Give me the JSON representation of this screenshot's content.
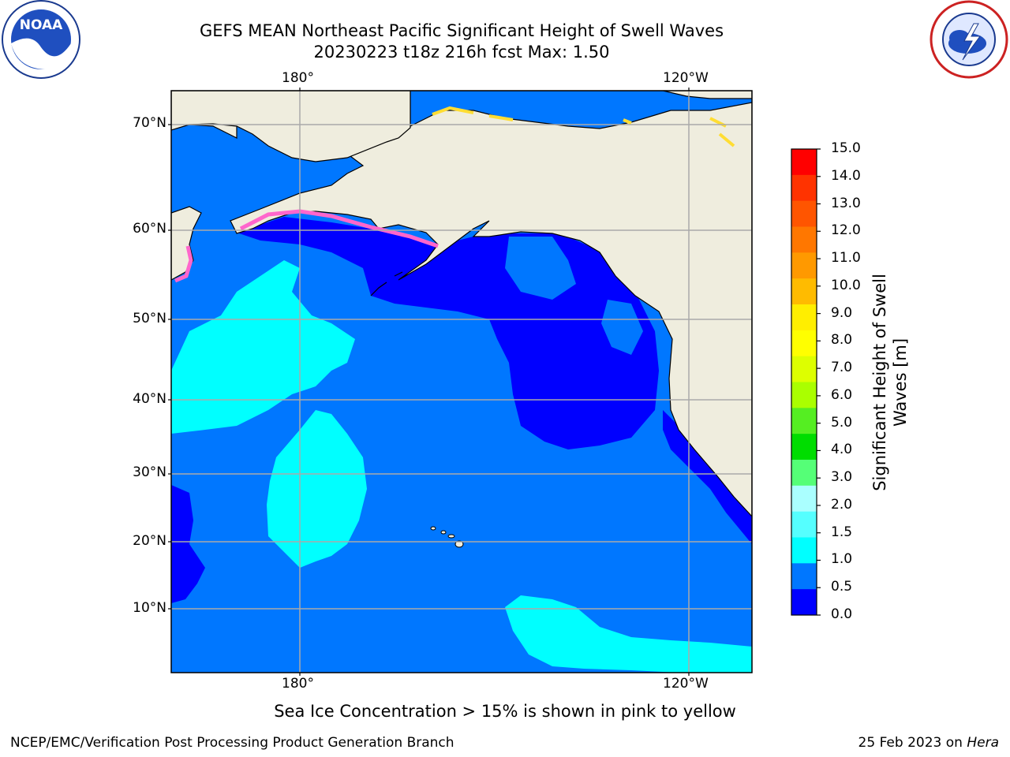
{
  "header": {
    "title_line1": "GEFS MEAN Northeast Pacific Significant Height of Swell Waves",
    "title_line2": "20230223 t18z 216h fcst   Max: 1.50"
  },
  "axes": {
    "lon_top": [
      "180°",
      "120°W"
    ],
    "lon_bottom": [
      "180°",
      "120°W"
    ],
    "lat_labels": [
      "70°N",
      "60°N",
      "50°N",
      "40°N",
      "30°N",
      "20°N",
      "10°N"
    ]
  },
  "colorbar": {
    "title": "Significant Height of Swell Waves [m]",
    "title_line1": "Significant Height of Swell",
    "title_line2": "Waves [m]",
    "ticks": [
      "15.0",
      "14.0",
      "13.0",
      "12.0",
      "11.0",
      "10.0",
      "9.0",
      "8.0",
      "7.0",
      "6.0",
      "5.0",
      "4.0",
      "3.0",
      "2.0",
      "1.5",
      "1.0",
      "0.5",
      "0.0"
    ],
    "colors": [
      "#ff0000",
      "#ff3300",
      "#ff5500",
      "#ff7700",
      "#ff9900",
      "#ffbb00",
      "#ffee00",
      "#ffff00",
      "#ddff00",
      "#aaff00",
      "#55ee22",
      "#00dd00",
      "#55ff77",
      "#aaffff",
      "#55ffff",
      "#00ffff",
      "#0077ff",
      "#0000ff"
    ]
  },
  "colors": {
    "land": "#efedde",
    "ocean_mid": "#0077ff",
    "ocean_low": "#0000ff",
    "ocean_high": "#00ffff",
    "ice_pink": "#ff66cc",
    "ice_yellow": "#ffdd33"
  },
  "footer": {
    "sea_ice_note": "Sea Ice Concentration > 15% is shown in pink to yellow",
    "credit_left": "NCEP/EMC/Verification Post Processing Product Generation Branch",
    "credit_right_date": "25 Feb 2023 on ",
    "credit_right_host": "Hera"
  },
  "logos": {
    "noaa": "NOAA",
    "nws": "NATIONAL WEATHER SERVICE"
  }
}
